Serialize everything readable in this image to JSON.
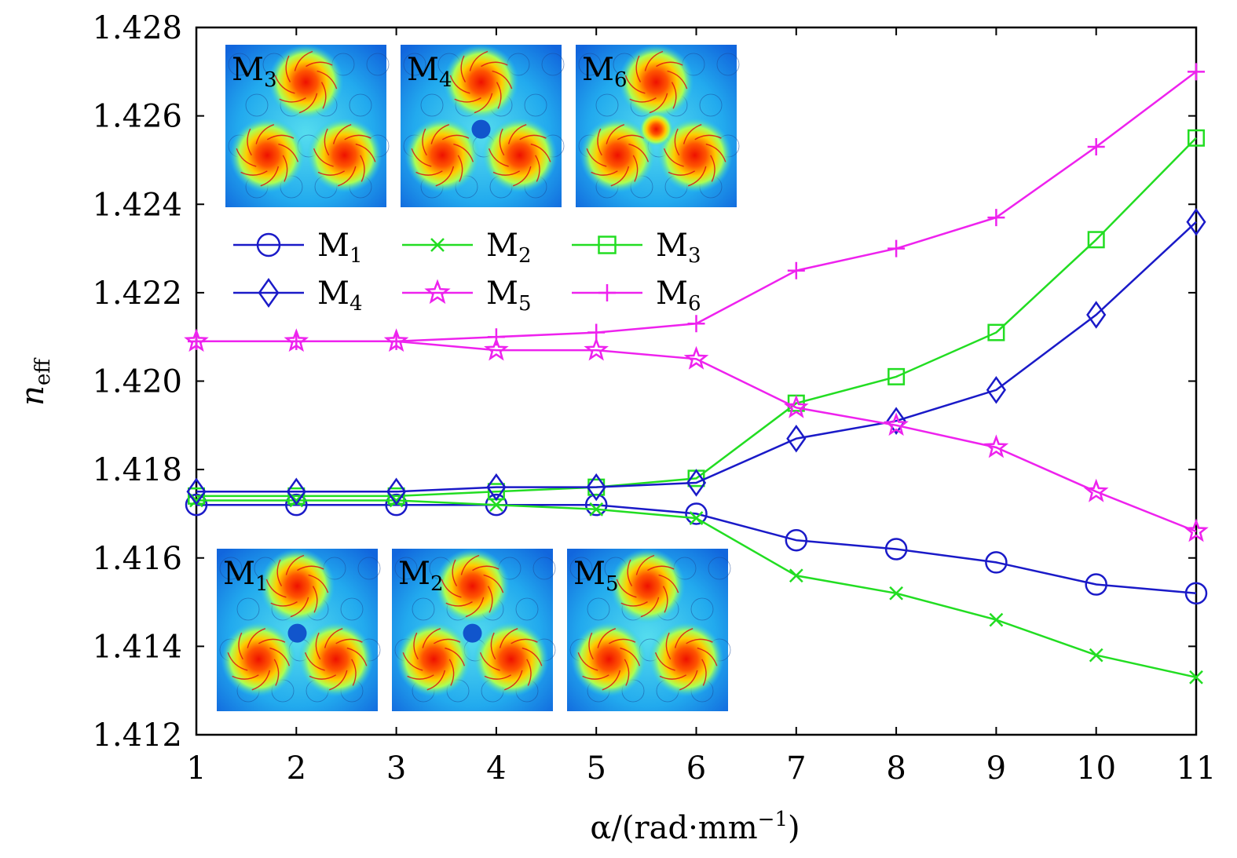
{
  "chart_data": {
    "type": "line",
    "xlabel": "α/(rad·mm",
    "xlabel_superscript": "−1",
    "xlabel_close": ")",
    "ylabel": "n",
    "ylabel_subscript": "eff",
    "xlim": [
      1,
      11
    ],
    "ylim": [
      1.412,
      1.428
    ],
    "x_ticks": [
      "1",
      "2",
      "3",
      "4",
      "5",
      "6",
      "7",
      "8",
      "9",
      "10",
      "11"
    ],
    "y_ticks": [
      "1.412",
      "1.414",
      "1.416",
      "1.418",
      "1.420",
      "1.422",
      "1.424",
      "1.426",
      "1.428"
    ],
    "grid": false,
    "legend_position": "upper-left",
    "x": [
      1,
      2,
      3,
      4,
      5,
      6,
      7,
      8,
      9,
      10,
      11
    ],
    "series": [
      {
        "name": "M",
        "sub": "1",
        "color": "#1a1ac8",
        "marker": "circle",
        "values": [
          1.4172,
          1.4172,
          1.4172,
          1.4172,
          1.4172,
          1.417,
          1.4164,
          1.4162,
          1.4159,
          1.4154,
          1.4152
        ]
      },
      {
        "name": "M",
        "sub": "2",
        "color": "#22dd22",
        "marker": "cross",
        "values": [
          1.4173,
          1.4173,
          1.4173,
          1.4172,
          1.4171,
          1.4169,
          1.4156,
          1.4152,
          1.4146,
          1.4138,
          1.4133
        ]
      },
      {
        "name": "M",
        "sub": "3",
        "color": "#22dd22",
        "marker": "square",
        "values": [
          1.4174,
          1.4174,
          1.4174,
          1.4175,
          1.4176,
          1.4178,
          1.4195,
          1.4201,
          1.4211,
          1.4232,
          1.4255
        ]
      },
      {
        "name": "M",
        "sub": "4",
        "color": "#1a1ac8",
        "marker": "diamond",
        "values": [
          1.4175,
          1.4175,
          1.4175,
          1.4176,
          1.4176,
          1.4177,
          1.4187,
          1.4191,
          1.4198,
          1.4215,
          1.4236
        ]
      },
      {
        "name": "M",
        "sub": "5",
        "color": "#ee22ee",
        "marker": "star",
        "values": [
          1.4209,
          1.4209,
          1.4209,
          1.4207,
          1.4207,
          1.4205,
          1.4194,
          1.419,
          1.4185,
          1.4175,
          1.4166
        ]
      },
      {
        "name": "M",
        "sub": "6",
        "color": "#ee22ee",
        "marker": "plus",
        "values": [
          1.4209,
          1.4209,
          1.4209,
          1.421,
          1.4211,
          1.4213,
          1.4225,
          1.423,
          1.4237,
          1.4253,
          1.427
        ]
      }
    ],
    "insets": [
      {
        "label": "M",
        "sub": "3",
        "pattern": "three-lobes"
      },
      {
        "label": "M",
        "sub": "4",
        "pattern": "three-lobes-center"
      },
      {
        "label": "M",
        "sub": "6",
        "pattern": "three-lobes-merged"
      },
      {
        "label": "M",
        "sub": "1",
        "pattern": "three-lobes-center"
      },
      {
        "label": "M",
        "sub": "2",
        "pattern": "three-lobes-center"
      },
      {
        "label": "M",
        "sub": "5",
        "pattern": "three-lobes"
      }
    ]
  }
}
